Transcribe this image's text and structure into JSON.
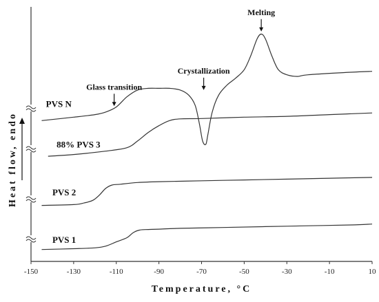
{
  "chart_data": {
    "type": "line",
    "xlabel": "Temperature, °C",
    "ylabel": "Heat flow, endo",
    "xlim": [
      -150,
      10
    ],
    "xticks": [
      -150,
      -130,
      -110,
      -90,
      -70,
      -50,
      -30,
      -10,
      10
    ],
    "grid": false,
    "series": [
      {
        "name": "PVS N",
        "x": [
          -145,
          -130,
          -120,
          -115,
          -110,
          -105,
          -100,
          -95,
          -90,
          -85,
          -80,
          -76,
          -73,
          -71,
          -69.5,
          -68,
          -67,
          -65,
          -62,
          -58,
          -54,
          -50,
          -47,
          -44,
          -42,
          -40,
          -37,
          -34,
          -30,
          -25,
          -20,
          0,
          10
        ],
        "y": [
          1.5,
          1.7,
          1.85,
          2.0,
          2.3,
          2.9,
          3.3,
          3.4,
          3.4,
          3.4,
          3.3,
          3.0,
          2.4,
          1.3,
          0.3,
          0.1,
          0.7,
          2.0,
          3.0,
          3.6,
          4.0,
          4.5,
          5.3,
          6.3,
          6.6,
          6.3,
          5.3,
          4.5,
          4.2,
          4.1,
          4.2,
          4.35,
          4.4
        ]
      },
      {
        "name": "88% PVS 3",
        "x": [
          -142,
          -130,
          -115,
          -105,
          -100,
          -95,
          -90,
          -85,
          -80,
          -70,
          -50,
          -30,
          -10,
          10
        ],
        "y": [
          -0.6,
          -0.5,
          -0.3,
          -0.1,
          0.3,
          0.8,
          1.2,
          1.5,
          1.6,
          1.62,
          1.7,
          1.75,
          1.85,
          1.95
        ]
      },
      {
        "name": "PVS 2",
        "x": [
          -145,
          -130,
          -125,
          -121,
          -118,
          -115,
          -112,
          -108,
          -100,
          -90,
          -70,
          -50,
          -30,
          -10,
          10
        ],
        "y": [
          -3.5,
          -3.45,
          -3.35,
          -3.2,
          -2.9,
          -2.5,
          -2.3,
          -2.25,
          -2.15,
          -2.1,
          -2.05,
          -2.0,
          -1.95,
          -1.9,
          -1.85
        ]
      },
      {
        "name": "PVS 1",
        "x": [
          -145,
          -130,
          -120,
          -115,
          -110,
          -105,
          -102,
          -99,
          -95,
          -90,
          -80,
          -60,
          -40,
          -20,
          0,
          10
        ],
        "y": [
          -6.1,
          -6.05,
          -6.0,
          -5.9,
          -5.65,
          -5.4,
          -5.1,
          -4.95,
          -4.92,
          -4.9,
          -4.85,
          -4.8,
          -4.75,
          -4.7,
          -4.65,
          -4.6
        ]
      }
    ],
    "series_label_x": [
      -143,
      -138,
      -140,
      -140
    ],
    "series_label_y": [
      2.3,
      -0.1,
      -2.9,
      -5.7
    ],
    "annotations": [
      {
        "label": "Glass transition",
        "x": -111,
        "y": 2.35
      },
      {
        "label": "Crystallization",
        "x": -69,
        "y": 3.3
      },
      {
        "label": "Melting",
        "x": -42,
        "y": 6.75
      }
    ]
  }
}
